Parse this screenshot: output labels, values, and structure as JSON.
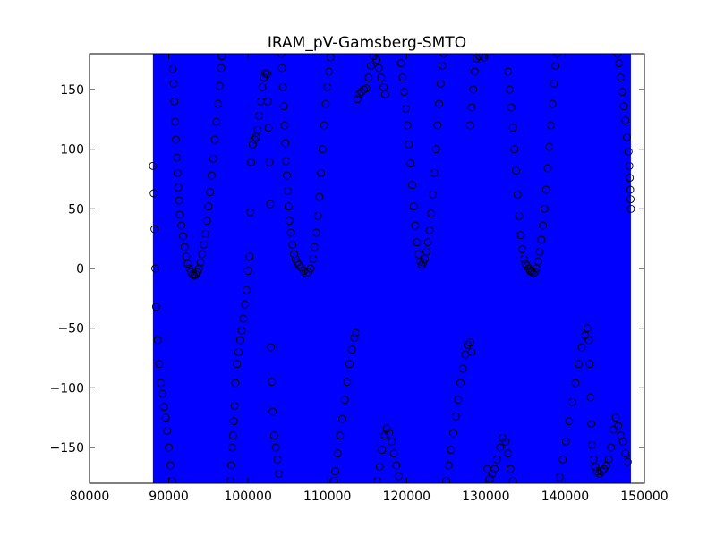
{
  "chart_data": {
    "type": "scatter",
    "title": "IRAM_pV-Gamsberg-SMTO",
    "xlabel": "",
    "ylabel": "",
    "xlim": [
      80000,
      150000
    ],
    "ylim": [
      -180,
      180
    ],
    "x_ticks": [
      80000,
      90000,
      100000,
      110000,
      120000,
      130000,
      140000,
      150000
    ],
    "x_tick_labels": [
      "80000",
      "90000",
      "100000",
      "110000",
      "120000",
      "130000",
      "140000",
      "150000"
    ],
    "y_ticks": [
      -150,
      -100,
      -50,
      0,
      50,
      100,
      150
    ],
    "y_tick_labels": [
      "−150",
      "−100",
      "−50",
      "0",
      "50",
      "100",
      "150"
    ],
    "grid": false,
    "legend": "none",
    "band": {
      "x_start": 88000,
      "x_end": 148300,
      "color": "#0000ff"
    },
    "marker": {
      "shape": "open-circle",
      "edge_color": "#000000"
    },
    "points": [
      [
        88000,
        86
      ],
      [
        88100,
        63
      ],
      [
        88200,
        33
      ],
      [
        88300,
        0
      ],
      [
        88400,
        -32
      ],
      [
        88600,
        -60
      ],
      [
        88800,
        -80
      ],
      [
        89000,
        -96
      ],
      [
        89200,
        -105
      ],
      [
        89400,
        -116
      ],
      [
        89600,
        -125
      ],
      [
        89800,
        -136
      ],
      [
        90000,
        -150
      ],
      [
        90200,
        -165
      ],
      [
        90400,
        -178
      ],
      [
        90500,
        167
      ],
      [
        90600,
        155
      ],
      [
        90700,
        140
      ],
      [
        90800,
        123
      ],
      [
        90900,
        108
      ],
      [
        91000,
        93
      ],
      [
        91100,
        80
      ],
      [
        91200,
        68
      ],
      [
        91300,
        57
      ],
      [
        91400,
        45
      ],
      [
        91600,
        36
      ],
      [
        91800,
        27
      ],
      [
        92000,
        18
      ],
      [
        92200,
        10
      ],
      [
        92400,
        4
      ],
      [
        92600,
        0
      ],
      [
        92800,
        -3
      ],
      [
        93000,
        -5
      ],
      [
        93200,
        -6
      ],
      [
        93400,
        -5
      ],
      [
        93600,
        -3
      ],
      [
        93800,
        0
      ],
      [
        94000,
        5
      ],
      [
        94200,
        12
      ],
      [
        94400,
        20
      ],
      [
        94600,
        29
      ],
      [
        94800,
        40
      ],
      [
        95000,
        52
      ],
      [
        95200,
        64
      ],
      [
        95400,
        78
      ],
      [
        95600,
        92
      ],
      [
        95800,
        108
      ],
      [
        96000,
        123
      ],
      [
        96200,
        138
      ],
      [
        96400,
        153
      ],
      [
        96600,
        168
      ],
      [
        96700,
        178
      ],
      [
        97800,
        -178
      ],
      [
        97900,
        -165
      ],
      [
        98000,
        -150
      ],
      [
        98100,
        -140
      ],
      [
        98200,
        -128
      ],
      [
        98300,
        -115
      ],
      [
        98400,
        -96
      ],
      [
        98600,
        -80
      ],
      [
        98800,
        -70
      ],
      [
        99000,
        -60
      ],
      [
        99200,
        -52
      ],
      [
        99400,
        -42
      ],
      [
        99600,
        -30
      ],
      [
        99800,
        -18
      ],
      [
        100000,
        -2
      ],
      [
        100200,
        10
      ],
      [
        100300,
        47
      ],
      [
        100400,
        89
      ],
      [
        100600,
        104
      ],
      [
        100800,
        108
      ],
      [
        101000,
        110
      ],
      [
        101200,
        116
      ],
      [
        101400,
        128
      ],
      [
        101600,
        140
      ],
      [
        101800,
        152
      ],
      [
        102000,
        160
      ],
      [
        102200,
        164
      ],
      [
        102400,
        163
      ],
      [
        102500,
        140
      ],
      [
        102600,
        118
      ],
      [
        102700,
        89
      ],
      [
        102800,
        54
      ],
      [
        102900,
        -66
      ],
      [
        103000,
        -95
      ],
      [
        103100,
        -120
      ],
      [
        103300,
        -140
      ],
      [
        103500,
        -150
      ],
      [
        103700,
        -160
      ],
      [
        103900,
        -172
      ],
      [
        104200,
        180
      ],
      [
        104300,
        168
      ],
      [
        104400,
        152
      ],
      [
        104500,
        136
      ],
      [
        104600,
        120
      ],
      [
        104700,
        105
      ],
      [
        104800,
        90
      ],
      [
        104900,
        78
      ],
      [
        105000,
        65
      ],
      [
        105100,
        52
      ],
      [
        105200,
        40
      ],
      [
        105400,
        30
      ],
      [
        105600,
        20
      ],
      [
        105800,
        12
      ],
      [
        106000,
        8
      ],
      [
        106200,
        5
      ],
      [
        106400,
        3
      ],
      [
        106700,
        1
      ],
      [
        107000,
        -2
      ],
      [
        107300,
        -4
      ],
      [
        107600,
        -3
      ],
      [
        107900,
        0
      ],
      [
        108200,
        8
      ],
      [
        108400,
        18
      ],
      [
        108600,
        30
      ],
      [
        108800,
        44
      ],
      [
        109000,
        60
      ],
      [
        109200,
        80
      ],
      [
        109400,
        100
      ],
      [
        109600,
        120
      ],
      [
        109800,
        138
      ],
      [
        110000,
        152
      ],
      [
        110200,
        165
      ],
      [
        110400,
        177
      ],
      [
        110800,
        -178
      ],
      [
        111000,
        -170
      ],
      [
        111300,
        -155
      ],
      [
        111600,
        -140
      ],
      [
        111900,
        -126
      ],
      [
        112200,
        -110
      ],
      [
        112500,
        -95
      ],
      [
        112800,
        -80
      ],
      [
        113100,
        -68
      ],
      [
        113400,
        -58
      ],
      [
        113600,
        -54
      ],
      [
        113800,
        142
      ],
      [
        114000,
        146
      ],
      [
        114300,
        148
      ],
      [
        114600,
        150
      ],
      [
        114900,
        151
      ],
      [
        115200,
        160
      ],
      [
        115500,
        170
      ],
      [
        115800,
        178
      ],
      [
        116200,
        175
      ],
      [
        116500,
        168
      ],
      [
        116800,
        160
      ],
      [
        117100,
        152
      ],
      [
        117300,
        146
      ],
      [
        116300,
        -178
      ],
      [
        116600,
        -166
      ],
      [
        116900,
        -152
      ],
      [
        117200,
        -140
      ],
      [
        117500,
        -134
      ],
      [
        117800,
        -138
      ],
      [
        118100,
        -145
      ],
      [
        118400,
        -155
      ],
      [
        118700,
        -165
      ],
      [
        119000,
        -174
      ],
      [
        119300,
        172
      ],
      [
        119500,
        160
      ],
      [
        119700,
        148
      ],
      [
        119900,
        134
      ],
      [
        120100,
        120
      ],
      [
        120300,
        104
      ],
      [
        120500,
        88
      ],
      [
        120700,
        70
      ],
      [
        120900,
        52
      ],
      [
        121100,
        36
      ],
      [
        121300,
        22
      ],
      [
        121500,
        12
      ],
      [
        121700,
        6
      ],
      [
        121900,
        3
      ],
      [
        122100,
        5
      ],
      [
        122300,
        8
      ],
      [
        122500,
        14
      ],
      [
        122700,
        22
      ],
      [
        122900,
        32
      ],
      [
        123100,
        46
      ],
      [
        123300,
        62
      ],
      [
        123500,
        80
      ],
      [
        123700,
        100
      ],
      [
        123900,
        120
      ],
      [
        124100,
        138
      ],
      [
        124300,
        155
      ],
      [
        124500,
        170
      ],
      [
        124700,
        180
      ],
      [
        125000,
        -178
      ],
      [
        125300,
        -165
      ],
      [
        125600,
        -152
      ],
      [
        125900,
        -138
      ],
      [
        126200,
        -124
      ],
      [
        126500,
        -110
      ],
      [
        126800,
        -96
      ],
      [
        127100,
        -84
      ],
      [
        127400,
        -72
      ],
      [
        127700,
        -64
      ],
      [
        128000,
        -62
      ],
      [
        128200,
        -70
      ],
      [
        128000,
        120
      ],
      [
        128200,
        135
      ],
      [
        128400,
        150
      ],
      [
        128600,
        165
      ],
      [
        128800,
        176
      ],
      [
        129200,
        178
      ],
      [
        129800,
        177
      ],
      [
        130200,
        -168
      ],
      [
        130500,
        -176
      ],
      [
        130800,
        -172
      ],
      [
        131100,
        -168
      ],
      [
        131400,
        -160
      ],
      [
        131800,
        -150
      ],
      [
        132100,
        -142
      ],
      [
        132500,
        -145
      ],
      [
        132800,
        -155
      ],
      [
        133100,
        -168
      ],
      [
        133400,
        -178
      ],
      [
        132800,
        165
      ],
      [
        133000,
        150
      ],
      [
        133200,
        135
      ],
      [
        133400,
        118
      ],
      [
        133600,
        100
      ],
      [
        133800,
        82
      ],
      [
        134000,
        62
      ],
      [
        134200,
        44
      ],
      [
        134400,
        28
      ],
      [
        134600,
        16
      ],
      [
        134800,
        8
      ],
      [
        135000,
        4
      ],
      [
        135200,
        2
      ],
      [
        135400,
        0
      ],
      [
        135600,
        -2
      ],
      [
        135800,
        -3
      ],
      [
        136000,
        -4
      ],
      [
        136200,
        -3
      ],
      [
        136400,
        0
      ],
      [
        136600,
        6
      ],
      [
        136800,
        14
      ],
      [
        137000,
        24
      ],
      [
        137200,
        36
      ],
      [
        137400,
        50
      ],
      [
        137600,
        66
      ],
      [
        137800,
        84
      ],
      [
        138000,
        102
      ],
      [
        138200,
        120
      ],
      [
        138400,
        138
      ],
      [
        138600,
        155
      ],
      [
        138800,
        170
      ],
      [
        139000,
        180
      ],
      [
        139300,
        -175
      ],
      [
        139700,
        -160
      ],
      [
        140100,
        -145
      ],
      [
        140500,
        -128
      ],
      [
        140900,
        -112
      ],
      [
        141300,
        -96
      ],
      [
        141700,
        -80
      ],
      [
        142100,
        -66
      ],
      [
        142500,
        -56
      ],
      [
        142800,
        -50
      ],
      [
        143000,
        -60
      ],
      [
        143100,
        -80
      ],
      [
        143200,
        -108
      ],
      [
        143300,
        -130
      ],
      [
        143400,
        -148
      ],
      [
        143600,
        -160
      ],
      [
        143800,
        -166
      ],
      [
        144000,
        -170
      ],
      [
        144300,
        -172
      ],
      [
        144600,
        -170
      ],
      [
        144900,
        -168
      ],
      [
        145200,
        -165
      ],
      [
        145500,
        -160
      ],
      [
        145800,
        -150
      ],
      [
        146100,
        -135
      ],
      [
        146400,
        -125
      ],
      [
        146700,
        -132
      ],
      [
        147000,
        -140
      ],
      [
        147300,
        -145
      ],
      [
        147600,
        -155
      ],
      [
        147900,
        -162
      ],
      [
        146600,
        180
      ],
      [
        146800,
        172
      ],
      [
        147000,
        160
      ],
      [
        147200,
        148
      ],
      [
        147400,
        136
      ],
      [
        147600,
        124
      ],
      [
        147800,
        110
      ],
      [
        148000,
        98
      ],
      [
        148100,
        86
      ],
      [
        148150,
        76
      ],
      [
        148200,
        66
      ],
      [
        148250,
        58
      ],
      [
        148300,
        50
      ]
    ]
  }
}
